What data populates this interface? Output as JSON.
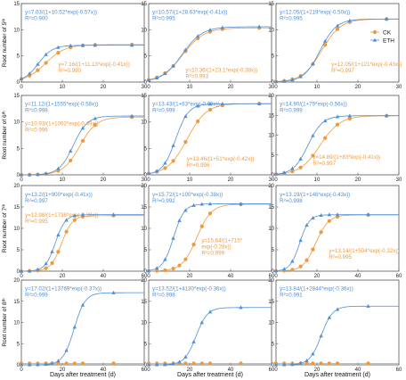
{
  "colors": {
    "CK": "#f0993b",
    "ETH": "#4f8fd6",
    "axis": "#555555"
  },
  "legend": {
    "items": [
      "CK",
      "ETH"
    ],
    "placement": "right of row 1 column 3"
  },
  "row_ylabels": [
    "Root number of 5ᵗʰ",
    "Root number of 6ᵗʰ",
    "Root number of 7ᵗʰ",
    "Root number of 8ᵗʰ"
  ],
  "xlabel": "Days after treatment (d)",
  "chart_data": [
    {
      "type": "scatter",
      "row": 0,
      "col": 0,
      "xlim": [
        0,
        30
      ],
      "ylim": [
        0,
        15
      ],
      "xticks": [
        0,
        10,
        20,
        30
      ],
      "yticks": [
        0,
        5,
        10,
        15
      ],
      "series": [
        {
          "name": "ETH",
          "K": 7.03,
          "a": 10.52,
          "r": 0.57,
          "x": [
            0,
            2,
            4,
            6,
            9,
            12,
            15,
            18,
            27
          ],
          "eq": "y=7.03/(1+10.52*exp(-0.57x))",
          "r2": "R²=0.900"
        },
        {
          "name": "CK",
          "K": 7.16,
          "a": 11.13,
          "r": 0.41,
          "x": [
            0,
            2,
            4,
            6,
            9,
            12,
            15,
            18,
            27
          ],
          "eq": "y=7.16/(1+11.13*exp(-0.41x))",
          "r2": "R²=0.990"
        }
      ]
    },
    {
      "type": "scatter",
      "row": 0,
      "col": 1,
      "xlim": [
        0,
        30
      ],
      "ylim": [
        0,
        15
      ],
      "xticks": [
        0,
        10,
        20,
        30
      ],
      "yticks": [
        0,
        5,
        10,
        15
      ],
      "series": [
        {
          "name": "ETH",
          "K": 10.57,
          "a": 28.63,
          "r": 0.41,
          "x": [
            0,
            2,
            4,
            6,
            9,
            12,
            15,
            18,
            27
          ],
          "eq": "y=10.57/(1+28.63*exp(-0.41x))",
          "r2": "R²=0.995"
        },
        {
          "name": "CK",
          "K": 10.36,
          "a": 23.1,
          "r": 0.38,
          "x": [
            0,
            2,
            4,
            6,
            9,
            12,
            15,
            18,
            27
          ],
          "eq": "y=10.36/(1+23.1*exp(-0.38x))",
          "r2": "R²=0.993"
        }
      ]
    },
    {
      "type": "scatter",
      "row": 0,
      "col": 2,
      "xlim": [
        0,
        30
      ],
      "ylim": [
        0,
        15
      ],
      "xticks": [
        0,
        10,
        20,
        30
      ],
      "yticks": [
        0,
        5,
        10,
        15
      ],
      "series": [
        {
          "name": "ETH",
          "K": 12.05,
          "a": 219,
          "r": 0.5,
          "x": [
            0,
            2,
            4,
            6,
            9,
            12,
            15,
            18,
            27
          ],
          "eq": "y=12.05/(1+219*exp(-0.50x))",
          "r2": "R²=0.995"
        },
        {
          "name": "CK",
          "K": 12.05,
          "a": 121,
          "r": 0.43,
          "x": [
            0,
            2,
            4,
            6,
            9,
            12,
            15,
            18,
            27
          ],
          "eq": "y=12.05/(1+121*exp(-0.43x))",
          "r2": "R²=0.997"
        }
      ]
    },
    {
      "type": "scatter",
      "row": 1,
      "col": 0,
      "xlim": [
        0,
        30
      ],
      "ylim": [
        0,
        15
      ],
      "xticks": [
        0,
        10,
        20,
        30
      ],
      "yticks": [
        0,
        5,
        10,
        15
      ],
      "series": [
        {
          "name": "ETH",
          "K": 11.12,
          "a": 1555,
          "r": 0.58,
          "x": [
            0,
            2,
            4,
            6,
            9,
            12,
            15,
            18,
            27
          ],
          "eq": "y=11.12/(1+1555*exp(-0.58x))",
          "r2": "R²=0.998"
        },
        {
          "name": "CK",
          "K": 10.93,
          "a": 1092,
          "r": 0.49,
          "x": [
            0,
            2,
            4,
            6,
            9,
            12,
            15,
            18,
            27
          ],
          "eq": "y=10.93/(1+1092*exp(-0.49x))",
          "r2": "R²=0.996"
        }
      ]
    },
    {
      "type": "scatter",
      "row": 1,
      "col": 1,
      "xlim": [
        0,
        30
      ],
      "ylim": [
        0,
        15
      ],
      "xticks": [
        0,
        10,
        20,
        30
      ],
      "yticks": [
        0,
        5,
        10,
        15
      ],
      "series": [
        {
          "name": "ETH",
          "K": 13.43,
          "a": 63,
          "r": 0.63,
          "x": [
            0,
            2,
            4,
            6,
            9,
            12,
            15,
            18,
            27
          ],
          "eq": "y=13.43/(1+63*exp(-0.63x))",
          "r2": "R²=0.999"
        },
        {
          "name": "CK",
          "K": 13.46,
          "a": 51,
          "r": 0.42,
          "x": [
            0,
            2,
            4,
            6,
            9,
            12,
            15,
            18,
            27
          ],
          "eq": "y=13.46/(1+51*exp(-0.42x))",
          "r2": "R²=0.996"
        }
      ]
    },
    {
      "type": "scatter",
      "row": 1,
      "col": 2,
      "xlim": [
        0,
        30
      ],
      "ylim": [
        0,
        20
      ],
      "xticks": [
        0,
        10,
        20,
        30
      ],
      "yticks": [
        0,
        5,
        10,
        15,
        20
      ],
      "series": [
        {
          "name": "ETH",
          "K": 14.9,
          "a": 79,
          "r": 0.56,
          "x": [
            0,
            2,
            4,
            6,
            9,
            12,
            15,
            18,
            27
          ],
          "eq": "y=14.90/(1+79*exp(-0.56x))",
          "r2": "R²=0.999"
        },
        {
          "name": "CK",
          "K": 14.89,
          "a": 83,
          "r": 0.41,
          "x": [
            0,
            2,
            4,
            6,
            9,
            12,
            15,
            18,
            27
          ],
          "eq": "y=14.89/(1+83*exp(-0.41x))",
          "r2": "R²=0.997"
        }
      ]
    },
    {
      "type": "scatter",
      "row": 2,
      "col": 0,
      "xlim": [
        0,
        60
      ],
      "ylim": [
        0,
        20
      ],
      "xticks": [
        0,
        20,
        40,
        60
      ],
      "yticks": [
        0,
        5,
        10,
        15,
        20
      ],
      "series": [
        {
          "name": "ETH",
          "K": 13.2,
          "a": 900,
          "r": 0.41,
          "x": [
            0,
            4,
            8,
            12,
            15,
            18,
            22,
            26,
            30,
            45
          ],
          "eq": "y=13.2/(1+900*exp(-0.41x))",
          "r2": "R²=0.997"
        },
        {
          "name": "CK",
          "K": 12.98,
          "a": 1738,
          "r": 0.38,
          "x": [
            0,
            4,
            8,
            12,
            15,
            18,
            22,
            26,
            30,
            45
          ],
          "eq": "y=12.98/(1+1738*exp(-0.38x))",
          "r2": "R²=0.995"
        }
      ]
    },
    {
      "type": "scatter",
      "row": 2,
      "col": 1,
      "xlim": [
        0,
        60
      ],
      "ylim": [
        0,
        20
      ],
      "xticks": [
        0,
        20,
        40,
        60
      ],
      "yticks": [
        0,
        5,
        10,
        15,
        20
      ],
      "series": [
        {
          "name": "ETH",
          "K": 15.72,
          "a": 100,
          "r": 0.38,
          "x": [
            0,
            4,
            8,
            12,
            15,
            18,
            22,
            26,
            30,
            45
          ],
          "eq": "y=15.72/(1+100*exp(-0.38x))",
          "r2": "R²=0.992"
        },
        {
          "name": "CK",
          "K": 15.64,
          "a": 715,
          "r": 0.28,
          "x": [
            0,
            4,
            8,
            12,
            15,
            18,
            22,
            26,
            30,
            45
          ],
          "eq": "y=15.64/(1+715*",
          "eq2": "exp(-0.28x))",
          "r2": "R²=0.999"
        }
      ]
    },
    {
      "type": "scatter",
      "row": 2,
      "col": 2,
      "xlim": [
        0,
        60
      ],
      "ylim": [
        0,
        20
      ],
      "xticks": [
        0,
        20,
        40,
        60
      ],
      "yticks": [
        0,
        5,
        10,
        15,
        20
      ],
      "series": [
        {
          "name": "ETH",
          "K": 13.19,
          "a": 146,
          "r": 0.43,
          "x": [
            0,
            4,
            8,
            12,
            15,
            18,
            22,
            26,
            30,
            45
          ],
          "eq": "y=13.19/(1+146*exp(-0.43x))",
          "r2": "R²=0.998"
        },
        {
          "name": "CK",
          "K": 13.14,
          "a": 504,
          "r": 0.32,
          "x": [
            0,
            4,
            8,
            12,
            15,
            18,
            22,
            26,
            30,
            45
          ],
          "eq": "y=13.14/(1+504*exp(-0.32x))",
          "r2": "R²=0.995"
        }
      ]
    },
    {
      "type": "scatter",
      "row": 3,
      "col": 0,
      "xlim": [
        0,
        60
      ],
      "ylim": [
        0,
        20
      ],
      "xticks": [
        0,
        20,
        40,
        60
      ],
      "yticks": [
        0,
        5,
        10,
        15,
        20
      ],
      "series": [
        {
          "name": "ETH",
          "K": 17.02,
          "a": 13769,
          "r": 0.37,
          "x": [
            0,
            4,
            8,
            12,
            15,
            18,
            22,
            26,
            30,
            45
          ],
          "eq": "y=17.02/(1+13769*exp(-0.37x))",
          "r2": "R²=0.999"
        },
        {
          "name": "CK",
          "K": 0.35,
          "a": 0,
          "r": 0,
          "x": [
            0,
            4,
            8,
            12,
            15,
            18,
            22,
            26,
            30,
            45
          ]
        }
      ]
    },
    {
      "type": "scatter",
      "row": 3,
      "col": 1,
      "xlim": [
        0,
        60
      ],
      "ylim": [
        0,
        20
      ],
      "xticks": [
        0,
        20,
        40,
        60
      ],
      "yticks": [
        0,
        5,
        10,
        15,
        20
      ],
      "series": [
        {
          "name": "ETH",
          "K": 13.52,
          "a": 4130,
          "r": 0.36,
          "x": [
            0,
            4,
            8,
            12,
            15,
            18,
            22,
            26,
            30,
            45
          ],
          "eq": "y=13.52/(1+4130*exp(-0.36x))",
          "r2": "R²=0.998"
        },
        {
          "name": "CK",
          "K": 0.35,
          "a": 0,
          "r": 0,
          "x": [
            0,
            4,
            8,
            12,
            15,
            18,
            22,
            26,
            30,
            45
          ]
        }
      ]
    },
    {
      "type": "scatter",
      "row": 3,
      "col": 2,
      "xlim": [
        0,
        60
      ],
      "ylim": [
        0,
        20
      ],
      "xticks": [
        0,
        20,
        40,
        60
      ],
      "yticks": [
        0,
        5,
        10,
        15,
        20
      ],
      "series": [
        {
          "name": "ETH",
          "K": 13.84,
          "a": 2844,
          "r": 0.36,
          "x": [
            0,
            4,
            8,
            12,
            15,
            18,
            22,
            26,
            30,
            45
          ],
          "eq": "y=13.84/(1+2844*exp(-0.36x))",
          "r2": "R²=0.991"
        },
        {
          "name": "CK",
          "K": 0.35,
          "a": 0,
          "r": 0,
          "x": [
            0,
            4,
            8,
            12,
            15,
            18,
            22,
            26,
            30,
            45
          ]
        }
      ]
    }
  ]
}
